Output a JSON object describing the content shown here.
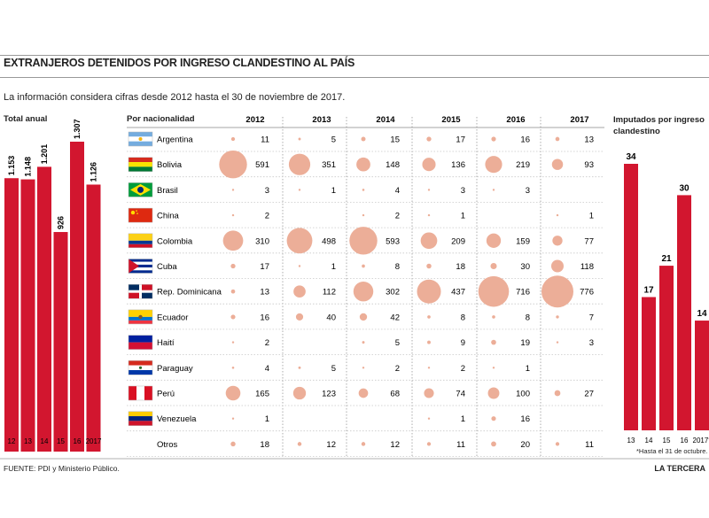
{
  "title": "EXTRANJEROS DETENIDOS POR INGRESO CLANDESTINO AL PAÍS",
  "intro": "La información considera cifras desde 2012 hasta el 30 de noviembre de 2017.",
  "source": "FUENTE: PDI y Ministerio Público.",
  "brand": "LA TERCERA",
  "colors": {
    "bar": "#d2162f",
    "bubble": "#ecae98",
    "grid": "#c8c8c8"
  },
  "chart_data": [
    {
      "type": "bar",
      "title": "Total anual",
      "categories": [
        "12",
        "13",
        "14",
        "15",
        "16",
        "2017"
      ],
      "values": [
        1153,
        1148,
        1201,
        926,
        1307,
        1126
      ],
      "value_labels": [
        "1.153",
        "1.148",
        "1.201",
        "926",
        "1.307",
        "1.126"
      ],
      "ylim": [
        0,
        1307
      ]
    },
    {
      "type": "table",
      "title": "Por nacionalidad",
      "columns": [
        "2012",
        "2013",
        "2014",
        "2015",
        "2016",
        "2017"
      ],
      "rows": [
        {
          "name": "Argentina",
          "flag": "argentina-flag-icon",
          "values": [
            11,
            5,
            15,
            17,
            16,
            13
          ]
        },
        {
          "name": "Bolivia",
          "flag": "bolivia-flag-icon",
          "values": [
            591,
            351,
            148,
            136,
            219,
            93
          ]
        },
        {
          "name": "Brasil",
          "flag": "brasil-flag-icon",
          "values": [
            3,
            1,
            4,
            3,
            3,
            null
          ]
        },
        {
          "name": "China",
          "flag": "china-flag-icon",
          "values": [
            2,
            null,
            2,
            1,
            null,
            1
          ]
        },
        {
          "name": "Colombia",
          "flag": "colombia-flag-icon",
          "values": [
            310,
            498,
            593,
            209,
            159,
            77
          ]
        },
        {
          "name": "Cuba",
          "flag": "cuba-flag-icon",
          "values": [
            17,
            1,
            8,
            18,
            30,
            118
          ]
        },
        {
          "name": "Rep. Dominicana",
          "flag": "rep-dominicana-flag-icon",
          "values": [
            13,
            112,
            302,
            437,
            716,
            776
          ]
        },
        {
          "name": "Ecuador",
          "flag": "ecuador-flag-icon",
          "values": [
            16,
            40,
            42,
            8,
            8,
            7
          ]
        },
        {
          "name": "Haití",
          "flag": "haiti-flag-icon",
          "values": [
            2,
            null,
            5,
            9,
            19,
            3
          ]
        },
        {
          "name": "Paraguay",
          "flag": "paraguay-flag-icon",
          "values": [
            4,
            5,
            2,
            2,
            1,
            null
          ]
        },
        {
          "name": "Perú",
          "flag": "peru-flag-icon",
          "values": [
            165,
            123,
            68,
            74,
            100,
            27
          ]
        },
        {
          "name": "Venezuela",
          "flag": "venezuela-flag-icon",
          "values": [
            1,
            null,
            null,
            1,
            16,
            null
          ]
        },
        {
          "name": "Otros",
          "flag": null,
          "values": [
            18,
            12,
            12,
            11,
            20,
            11
          ]
        }
      ]
    },
    {
      "type": "bar",
      "title": "Imputados por ingreso clandestino",
      "categories": [
        "13",
        "14",
        "15",
        "16",
        "2017*"
      ],
      "values": [
        34,
        17,
        21,
        30,
        14
      ],
      "ylim": [
        0,
        34
      ],
      "footnote": "*Hasta el 31 de octubre."
    }
  ]
}
